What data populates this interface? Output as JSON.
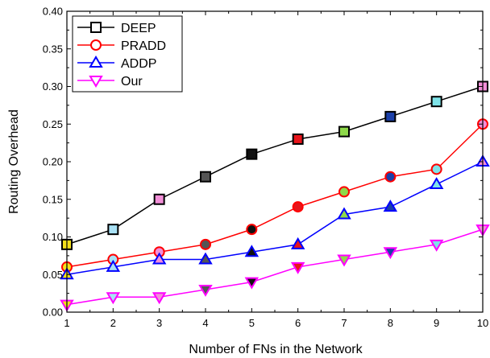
{
  "chart_data": {
    "type": "line",
    "xlabel": "Number of FNs in the Network",
    "ylabel": "Routing Overhead",
    "x": [
      1,
      2,
      3,
      4,
      5,
      6,
      7,
      8,
      9,
      10
    ],
    "xlim": [
      1,
      10
    ],
    "ylim": [
      0.0,
      0.4
    ],
    "y_ticks": [
      "0.00",
      "0.05",
      "0.10",
      "0.15",
      "0.20",
      "0.25",
      "0.30",
      "0.35",
      "0.40"
    ],
    "x_ticks": [
      "1",
      "2",
      "3",
      "4",
      "5",
      "6",
      "7",
      "8",
      "9",
      "10"
    ],
    "legend_position": "top-left",
    "grid": false,
    "series": [
      {
        "name": "DEEP",
        "color": "#000000",
        "marker": "square",
        "values": [
          0.09,
          0.11,
          0.15,
          0.18,
          0.21,
          0.23,
          0.24,
          0.26,
          0.28,
          0.3
        ],
        "marker_fills": [
          "#f5e11c",
          "#a9e1f5",
          "#f28fd8",
          "#555555",
          "#111111",
          "#e8151b",
          "#8ed94a",
          "#1b3fa8",
          "#7fe3e8",
          "#f28fd8"
        ]
      },
      {
        "name": "PRADD",
        "color": "#ff0000",
        "marker": "circle",
        "values": [
          0.06,
          0.07,
          0.08,
          0.09,
          0.11,
          0.14,
          0.16,
          0.18,
          0.19,
          0.25
        ],
        "marker_fills": [
          "#f5e11c",
          "#a9e1f5",
          "#f28fd8",
          "#555555",
          "#111111",
          "#e8151b",
          "#8ed94a",
          "#1b3fa8",
          "#7fe3e8",
          "#f28fd8"
        ]
      },
      {
        "name": "ADDP",
        "color": "#0000ff",
        "marker": "triangle-up",
        "values": [
          0.05,
          0.06,
          0.07,
          0.07,
          0.08,
          0.09,
          0.13,
          0.14,
          0.17,
          0.2
        ],
        "marker_fills": [
          "#f5e11c",
          "#a9e1f5",
          "#f28fd8",
          "#555555",
          "#111111",
          "#e8151b",
          "#8ed94a",
          "#1b3fa8",
          "#7fe3e8",
          "#f28fd8"
        ]
      },
      {
        "name": "Our",
        "color": "#ff00ff",
        "marker": "triangle-down",
        "values": [
          0.01,
          0.02,
          0.02,
          0.03,
          0.04,
          0.06,
          0.07,
          0.08,
          0.09,
          0.11
        ],
        "marker_fills": [
          "#f5e11c",
          "#a9e1f5",
          "#f28fd8",
          "#555555",
          "#111111",
          "#e8151b",
          "#8ed94a",
          "#1b3fa8",
          "#7fe3e8",
          "#f28fd8"
        ]
      }
    ]
  }
}
